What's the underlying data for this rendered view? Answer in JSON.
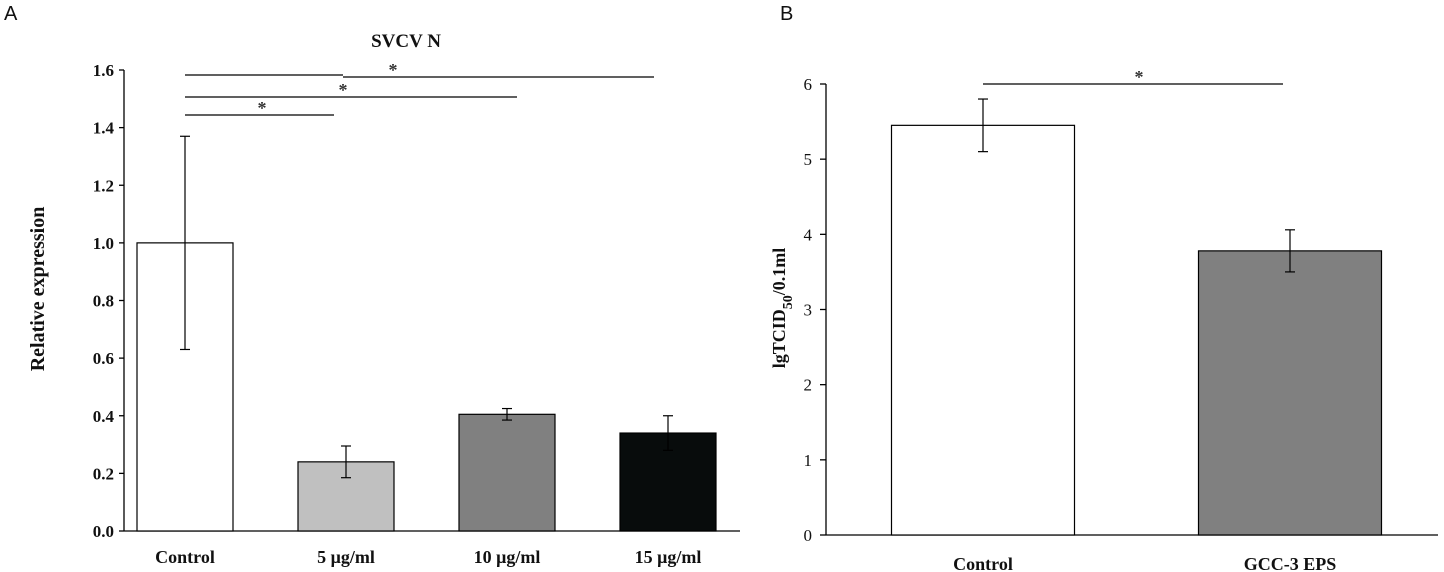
{
  "panels": {
    "a": "A",
    "b": "B"
  },
  "chart_data": [
    {
      "type": "bar",
      "title": "SVCV N",
      "xlabel": "",
      "ylabel": "Relative expression",
      "ylim": [
        0,
        1.6
      ],
      "yticks": [
        "0.0",
        "0.2",
        "0.4",
        "0.6",
        "0.8",
        "1.0",
        "1.2",
        "1.4",
        "1.6"
      ],
      "categories": [
        "Control",
        "5 μg/ml",
        "10 μg/ml",
        "15 μg/ml"
      ],
      "values": [
        1.0,
        0.24,
        0.405,
        0.34
      ],
      "errors": [
        0.37,
        0.055,
        0.02,
        0.06
      ],
      "colors": [
        "#ffffff",
        "#c0c0c0",
        "#808080",
        "#080c0c"
      ],
      "significance": [
        {
          "from": 0,
          "to": 1,
          "label": "*"
        },
        {
          "from": 0,
          "to": 2,
          "label": "*"
        },
        {
          "from": 0,
          "to": 3,
          "label": "*"
        }
      ]
    },
    {
      "type": "bar",
      "title": "",
      "xlabel": "",
      "ylabel_main": "lgTCID",
      "ylabel_sub": "50",
      "ylabel_tail": "/0.1ml",
      "ylim": [
        0,
        6
      ],
      "yticks": [
        "0",
        "1",
        "2",
        "3",
        "4",
        "5",
        "6"
      ],
      "categories": [
        "Control",
        "GCC-3 EPS"
      ],
      "values": [
        5.45,
        3.78
      ],
      "errors": [
        0.35,
        0.28
      ],
      "colors": [
        "#ffffff",
        "#808080"
      ],
      "significance": [
        {
          "from": 0,
          "to": 1,
          "label": "*"
        }
      ]
    }
  ]
}
